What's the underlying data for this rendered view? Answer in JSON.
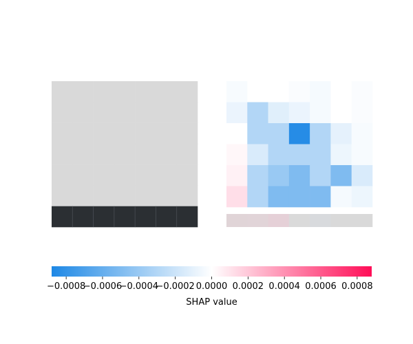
{
  "chart_data": [
    {
      "type": "heatmap",
      "panel": "input-image",
      "rows": 7,
      "cols": 7,
      "cell_colors": [
        [
          "#d9d9d9",
          "#d9d9d9",
          "#d9d9d9",
          "#d9d9d9",
          "#d9d9d9",
          "#d9d9d9",
          "#d9d9d9"
        ],
        [
          "#d9d9d9",
          "#d9d9d9",
          "#d9d9d9",
          "#d9d9d9",
          "#d9d9d9",
          "#d9d9d9",
          "#d9d9d9"
        ],
        [
          "#d9d9d9",
          "#d9d9d9",
          "#d9d9d9",
          "#d9d9d9",
          "#d9d9d9",
          "#d9d9d9",
          "#d9d9d9"
        ],
        [
          "#d9d9d9",
          "#d9d9d9",
          "#d9d9d9",
          "#d9d9d9",
          "#d9d9d9",
          "#d9d9d9",
          "#d9d9d9"
        ],
        [
          "#d9d9d9",
          "#d9d9d9",
          "#d9d9d9",
          "#d9d9d9",
          "#d9d9d9",
          "#d9d9d9",
          "#d9d9d9"
        ],
        [
          "#d9d9d9",
          "#d9d9d9",
          "#d9d9d9",
          "#d9d9d9",
          "#d9d9d9",
          "#d9d9d9",
          "#d9d9d9"
        ],
        [
          "#2b2f33",
          "#2b2f33",
          "#2b2f33",
          "#2b2f33",
          "#2b2f33",
          "#2b2f33",
          "#2b2f33"
        ]
      ]
    },
    {
      "type": "heatmap",
      "panel": "shap-explanation",
      "rows": 6,
      "cols": 7,
      "values": [
        [
          -3e-05,
          0.0,
          0.0,
          -2e-05,
          -4e-05,
          0.0,
          -2e-05
        ],
        [
          -8e-05,
          -0.0003,
          -0.00012,
          -8e-05,
          -4e-05,
          0.0,
          -2e-05
        ],
        [
          0.0,
          -0.0003,
          -0.0003,
          -0.00085,
          -0.0003,
          -0.0001,
          -3e-05
        ],
        [
          3e-05,
          -0.00015,
          -0.0003,
          -0.0003,
          -0.0003,
          -7e-05,
          -3e-05
        ],
        [
          5e-05,
          -0.0003,
          -0.0004,
          -0.0005,
          -0.0003,
          -0.0005,
          -0.00015
        ],
        [
          0.00012,
          -0.0003,
          -0.0005,
          -0.0005,
          -0.0005,
          -4e-05,
          -7e-05
        ]
      ],
      "background_strip": [
        "#e0d4d7",
        "#e1d4d8",
        "#e5d0d7",
        "#dadada",
        "#d8dadd",
        "#d9d9d9",
        "#d9d9d9"
      ],
      "vmin": -0.00088,
      "vmax": 0.00088
    },
    {
      "type": "colorbar",
      "xlabel": "SHAP value",
      "range": [
        -0.00088,
        0.00088
      ],
      "ticks": [
        -0.0008,
        -0.0006,
        -0.0004,
        -0.0002,
        0.0,
        0.0002,
        0.0004,
        0.0006,
        0.0008
      ],
      "tick_labels": [
        "−0.0008",
        "−0.0006",
        "−0.0004",
        "−0.0002",
        "0.0000",
        "0.0002",
        "0.0004",
        "0.0006",
        "0.0008"
      ],
      "colors": {
        "negative": "#1e88e5",
        "zero": "#ffffff",
        "positive": "#ff0d57"
      }
    }
  ]
}
